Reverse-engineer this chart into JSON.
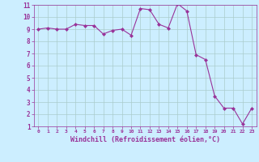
{
  "x": [
    0,
    1,
    2,
    3,
    4,
    5,
    6,
    7,
    8,
    9,
    10,
    11,
    12,
    13,
    14,
    15,
    16,
    17,
    18,
    19,
    20,
    21,
    22,
    23
  ],
  "y": [
    9.0,
    9.1,
    9.0,
    9.0,
    9.4,
    9.3,
    9.3,
    8.6,
    8.9,
    9.0,
    8.5,
    10.7,
    10.6,
    9.4,
    9.1,
    11.1,
    10.5,
    6.9,
    6.5,
    3.5,
    2.5,
    2.5,
    1.2,
    2.5
  ],
  "line_color": "#993399",
  "marker": "D",
  "marker_size": 2.0,
  "line_width": 0.8,
  "xlabel": "Windchill (Refroidissement éolien,°C)",
  "xlabel_fontsize": 6.0,
  "background_color": "#cceeff",
  "grid_color": "#aacccc",
  "tick_color": "#993399",
  "label_color": "#993399",
  "xlim": [
    -0.5,
    23.5
  ],
  "ylim": [
    1,
    11
  ],
  "yticks": [
    1,
    2,
    3,
    4,
    5,
    6,
    7,
    8,
    9,
    10,
    11
  ],
  "xticks": [
    0,
    1,
    2,
    3,
    4,
    5,
    6,
    7,
    8,
    9,
    10,
    11,
    12,
    13,
    14,
    15,
    16,
    17,
    18,
    19,
    20,
    21,
    22,
    23
  ]
}
